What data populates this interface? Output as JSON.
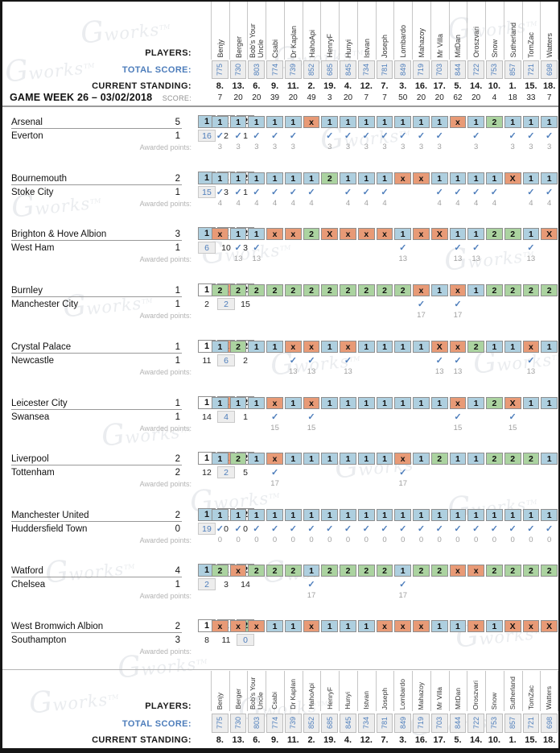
{
  "labels": {
    "players": "PLAYERS:",
    "total_score": "TOTAL SCORE:",
    "current_standing": "CURRENT STANDING:",
    "gameweek": "GAME WEEK 26 – 03/02/2018",
    "score": "SCORE:",
    "awarded_points": "Awarded points:",
    "watermark_initial": "G",
    "watermark_text": "works",
    "watermark_tm": "TM",
    "outcome_options": [
      "1",
      "X",
      "2"
    ]
  },
  "glyphs": {
    "checkmark": "✓"
  },
  "colors": {
    "home_win_cell": "#aecfdf",
    "draw_cell": "#e89a76",
    "away_win_cell": "#abd3a0",
    "accent_blue": "#4d7dbb",
    "count_highlight_bg": "#ededed",
    "muted_text": "#a0a0a0"
  },
  "players": [
    {
      "name": "Benjy",
      "total": "775",
      "standing": "8.",
      "week_score": "7"
    },
    {
      "name": "Berger",
      "total": "730",
      "standing": "13.",
      "week_score": "20"
    },
    {
      "name": "Bob's Your Uncle",
      "total": "803",
      "standing": "6.",
      "week_score": "20"
    },
    {
      "name": "Csabi",
      "total": "774",
      "standing": "9.",
      "week_score": "39"
    },
    {
      "name": "Dr Kaplan",
      "total": "739",
      "standing": "11.",
      "week_score": "20"
    },
    {
      "name": "HahoApi",
      "total": "852",
      "standing": "2.",
      "week_score": "49"
    },
    {
      "name": "HenryF",
      "total": "685",
      "standing": "19.",
      "week_score": "3"
    },
    {
      "name": "Hunyi",
      "total": "845",
      "standing": "4.",
      "week_score": "20"
    },
    {
      "name": "Istvan",
      "total": "734",
      "standing": "12.",
      "week_score": "7"
    },
    {
      "name": "Joseph",
      "total": "781",
      "standing": "7.",
      "week_score": "7"
    },
    {
      "name": "Lombardo",
      "total": "849",
      "standing": "3.",
      "week_score": "50"
    },
    {
      "name": "Mahazoy",
      "total": "719",
      "standing": "16.",
      "week_score": "20"
    },
    {
      "name": "Mr Villa",
      "total": "703",
      "standing": "17.",
      "week_score": "20"
    },
    {
      "name": "MitDan",
      "total": "844",
      "standing": "5.",
      "week_score": "62"
    },
    {
      "name": "Oroszvari",
      "total": "722",
      "standing": "14.",
      "week_score": "20"
    },
    {
      "name": "Snow",
      "total": "753",
      "standing": "10.",
      "week_score": "4"
    },
    {
      "name": "Sutherland",
      "total": "857",
      "standing": "1.",
      "week_score": "18"
    },
    {
      "name": "TomZac",
      "total": "721",
      "standing": "15.",
      "week_score": "33"
    },
    {
      "name": "Watters",
      "total": "698",
      "standing": "18.",
      "week_score": "7"
    }
  ],
  "matches": [
    {
      "home_team": "Arsenal",
      "home_goals": "5",
      "away_team": "Everton",
      "away_goals": "1",
      "result": "1",
      "count_1": "16",
      "count_x": "2",
      "count_2": "1",
      "points": "3",
      "predictions": [
        "1",
        "1",
        "1",
        "1",
        "1",
        "x",
        "1",
        "1",
        "1",
        "1",
        "1",
        "1",
        "1",
        "x",
        "1",
        "2",
        "1",
        "1",
        "1"
      ]
    },
    {
      "home_team": "Bournemouth",
      "home_goals": "2",
      "away_team": "Stoke City",
      "away_goals": "1",
      "result": "1",
      "count_1": "15",
      "count_x": "3",
      "count_2": "1",
      "points": "4",
      "predictions": [
        "1",
        "1",
        "1",
        "1",
        "1",
        "1",
        "2",
        "1",
        "1",
        "1",
        "x",
        "x",
        "1",
        "1",
        "1",
        "1",
        "X",
        "1",
        "1"
      ]
    },
    {
      "home_team": "Brighton & Hove Albion",
      "home_goals": "3",
      "away_team": "West Ham",
      "away_goals": "1",
      "result": "1",
      "count_1": "6",
      "count_x": "10",
      "count_2": "3",
      "points": "13",
      "predictions": [
        "x",
        "1",
        "1",
        "x",
        "x",
        "2",
        "X",
        "x",
        "x",
        "x",
        "1",
        "x",
        "X",
        "1",
        "1",
        "2",
        "2",
        "1",
        "X"
      ]
    },
    {
      "home_team": "Burnley",
      "home_goals": "1",
      "away_team": "Manchester City",
      "away_goals": "1",
      "result": "X",
      "count_1": "2",
      "count_x": "2",
      "count_2": "15",
      "points": "17",
      "predictions": [
        "2",
        "2",
        "2",
        "2",
        "2",
        "2",
        "2",
        "2",
        "2",
        "2",
        "2",
        "x",
        "1",
        "x",
        "1",
        "2",
        "2",
        "2",
        "2"
      ]
    },
    {
      "home_team": "Crystal Palace",
      "home_goals": "1",
      "away_team": "Newcastle",
      "away_goals": "1",
      "result": "X",
      "count_1": "11",
      "count_x": "6",
      "count_2": "2",
      "points": "13",
      "predictions": [
        "1",
        "2",
        "1",
        "1",
        "x",
        "x",
        "1",
        "x",
        "1",
        "1",
        "1",
        "1",
        "X",
        "x",
        "2",
        "1",
        "1",
        "x",
        "1"
      ]
    },
    {
      "home_team": "Leicester City",
      "home_goals": "1",
      "away_team": "Swansea",
      "away_goals": "1",
      "result": "X",
      "count_1": "14",
      "count_x": "4",
      "count_2": "1",
      "points": "15",
      "predictions": [
        "1",
        "1",
        "1",
        "x",
        "1",
        "x",
        "1",
        "1",
        "1",
        "1",
        "1",
        "1",
        "1",
        "x",
        "1",
        "2",
        "X",
        "1",
        "1"
      ]
    },
    {
      "home_team": "Liverpool",
      "home_goals": "2",
      "away_team": "Tottenham",
      "away_goals": "2",
      "result": "X",
      "count_1": "12",
      "count_x": "2",
      "count_2": "5",
      "points": "17",
      "predictions": [
        "1",
        "2",
        "1",
        "x",
        "1",
        "1",
        "1",
        "1",
        "1",
        "1",
        "x",
        "1",
        "2",
        "1",
        "1",
        "2",
        "2",
        "2",
        "1"
      ]
    },
    {
      "home_team": "Manchester United",
      "home_goals": "2",
      "away_team": "Huddersfield Town",
      "away_goals": "0",
      "result": "1",
      "count_1": "19",
      "count_x": "0",
      "count_2": "0",
      "points": "0",
      "predictions": [
        "1",
        "1",
        "1",
        "1",
        "1",
        "1",
        "1",
        "1",
        "1",
        "1",
        "1",
        "1",
        "1",
        "1",
        "1",
        "1",
        "1",
        "1",
        "1"
      ]
    },
    {
      "home_team": "Watford",
      "home_goals": "4",
      "away_team": "Chelsea",
      "away_goals": "1",
      "result": "1",
      "count_1": "2",
      "count_x": "3",
      "count_2": "14",
      "points": "17",
      "predictions": [
        "2",
        "x",
        "2",
        "2",
        "2",
        "1",
        "2",
        "2",
        "2",
        "2",
        "1",
        "2",
        "2",
        "x",
        "x",
        "2",
        "2",
        "2",
        "2"
      ]
    },
    {
      "home_team": "West Bromwich Albion",
      "home_goals": "2",
      "away_team": "Southampton",
      "away_goals": "3",
      "result": "2",
      "count_1": "8",
      "count_x": "11",
      "count_2": "0",
      "points": "",
      "predictions": [
        "x",
        "x",
        "x",
        "1",
        "1",
        "x",
        "1",
        "1",
        "1",
        "x",
        "x",
        "x",
        "1",
        "1",
        "x",
        "1",
        "X",
        "x",
        "X"
      ]
    }
  ]
}
